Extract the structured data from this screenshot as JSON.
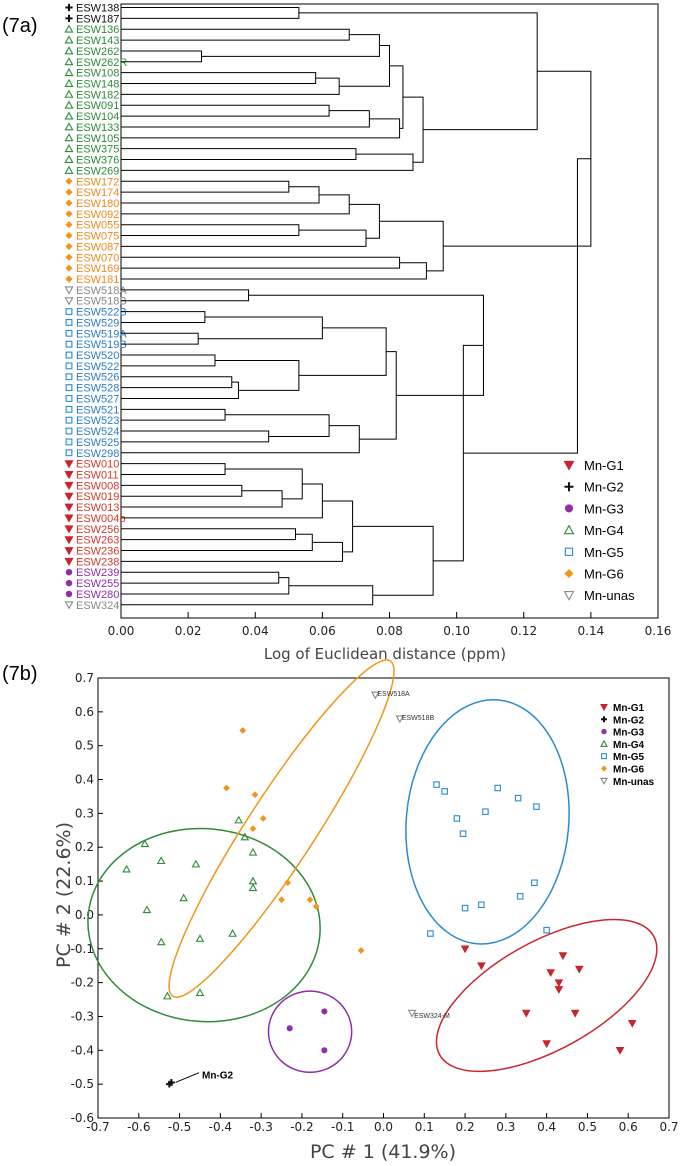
{
  "groups": {
    "Mn-G1": {
      "color": "#c9252c",
      "marker": "tri-down"
    },
    "Mn-G2": {
      "color": "#111111",
      "marker": "plus"
    },
    "Mn-G3": {
      "color": "#8e2ea8",
      "marker": "circle"
    },
    "Mn-G4": {
      "color": "#2e8b3a",
      "marker": "tri-up-open"
    },
    "Mn-G5": {
      "color": "#2a8bd0",
      "marker": "square-open"
    },
    "Mn-G6": {
      "color": "#f0961c",
      "marker": "diamond"
    },
    "Mn-unas": {
      "color": "#8a8a8a",
      "marker": "tri-down-open"
    }
  },
  "label_colors": {
    "Mn-G1": "#d33a2c",
    "Mn-G2": "#111111",
    "Mn-G3": "#8e2ea8",
    "Mn-G4": "#2e8b3a",
    "Mn-G5": "#2a7ec4",
    "Mn-G6": "#ee8a1c",
    "Mn-unas": "#888888"
  },
  "chart_data": [
    {
      "panel_label": "(7a)",
      "type": "dendrogram",
      "xlabel": "Log of Euclidean distance (ppm)",
      "xlim": [
        0.0,
        0.16
      ],
      "xticks": [
        "0.00",
        "0.02",
        "0.04",
        "0.06",
        "0.08",
        "0.10",
        "0.12",
        "0.14",
        "0.16"
      ],
      "legend_position": "bottom-right",
      "legend": [
        "Mn-G1",
        "Mn-G2",
        "Mn-G3",
        "Mn-G4",
        "Mn-G5",
        "Mn-G6",
        "Mn-unas"
      ],
      "leaves": [
        {
          "name": "ESW138",
          "group": "Mn-G2"
        },
        {
          "name": "ESW187",
          "group": "Mn-G2"
        },
        {
          "name": "ESW136",
          "group": "Mn-G4"
        },
        {
          "name": "ESW143",
          "group": "Mn-G4"
        },
        {
          "name": "ESW262",
          "group": "Mn-G4"
        },
        {
          "name": "ESW262R",
          "group": "Mn-G4"
        },
        {
          "name": "ESW108",
          "group": "Mn-G4"
        },
        {
          "name": "ESW148",
          "group": "Mn-G4"
        },
        {
          "name": "ESW182",
          "group": "Mn-G4"
        },
        {
          "name": "ESW091",
          "group": "Mn-G4"
        },
        {
          "name": "ESW104",
          "group": "Mn-G4"
        },
        {
          "name": "ESW133",
          "group": "Mn-G4"
        },
        {
          "name": "ESW105",
          "group": "Mn-G4"
        },
        {
          "name": "ESW375",
          "group": "Mn-G4"
        },
        {
          "name": "ESW376",
          "group": "Mn-G4"
        },
        {
          "name": "ESW269",
          "group": "Mn-G4"
        },
        {
          "name": "ESW172",
          "group": "Mn-G6"
        },
        {
          "name": "ESW174",
          "group": "Mn-G6"
        },
        {
          "name": "ESW180",
          "group": "Mn-G6"
        },
        {
          "name": "ESW092",
          "group": "Mn-G6"
        },
        {
          "name": "ESW055",
          "group": "Mn-G6"
        },
        {
          "name": "ESW075",
          "group": "Mn-G6"
        },
        {
          "name": "ESW087",
          "group": "Mn-G6"
        },
        {
          "name": "ESW070",
          "group": "Mn-G6"
        },
        {
          "name": "ESW169",
          "group": "Mn-G6"
        },
        {
          "name": "ESW181",
          "group": "Mn-G6"
        },
        {
          "name": "ESW518A",
          "group": "Mn-unas"
        },
        {
          "name": "ESW518B",
          "group": "Mn-unas"
        },
        {
          "name": "ESW522B",
          "group": "Mn-G5"
        },
        {
          "name": "ESW529",
          "group": "Mn-G5"
        },
        {
          "name": "ESW519A",
          "group": "Mn-G5"
        },
        {
          "name": "ESW519B",
          "group": "Mn-G5"
        },
        {
          "name": "ESW520",
          "group": "Mn-G5"
        },
        {
          "name": "ESW522",
          "group": "Mn-G5"
        },
        {
          "name": "ESW526",
          "group": "Mn-G5"
        },
        {
          "name": "ESW528",
          "group": "Mn-G5"
        },
        {
          "name": "ESW527",
          "group": "Mn-G5"
        },
        {
          "name": "ESW521",
          "group": "Mn-G5"
        },
        {
          "name": "ESW523",
          "group": "Mn-G5"
        },
        {
          "name": "ESW524",
          "group": "Mn-G5"
        },
        {
          "name": "ESW525",
          "group": "Mn-G5"
        },
        {
          "name": "ESW298",
          "group": "Mn-G5"
        },
        {
          "name": "ESW010",
          "group": "Mn-G1"
        },
        {
          "name": "ESW011",
          "group": "Mn-G1"
        },
        {
          "name": "ESW008",
          "group": "Mn-G1"
        },
        {
          "name": "ESW019",
          "group": "Mn-G1"
        },
        {
          "name": "ESW013",
          "group": "Mn-G1"
        },
        {
          "name": "ESW004b",
          "group": "Mn-G1"
        },
        {
          "name": "ESW256",
          "group": "Mn-G1"
        },
        {
          "name": "ESW263",
          "group": "Mn-G1"
        },
        {
          "name": "ESW236",
          "group": "Mn-G1"
        },
        {
          "name": "ESW238",
          "group": "Mn-G1"
        },
        {
          "name": "ESW239",
          "group": "Mn-G3"
        },
        {
          "name": "ESW255",
          "group": "Mn-G3"
        },
        {
          "name": "ESW280",
          "group": "Mn-G3"
        },
        {
          "name": "ESW324",
          "group": "Mn-unas"
        }
      ],
      "merges": [
        {
          "id": "a",
          "l": "ESW138",
          "r": "ESW187",
          "h": 0.053
        },
        {
          "id": "b",
          "l": "ESW136",
          "r": "ESW143",
          "h": 0.068
        },
        {
          "id": "c",
          "l": "ESW262",
          "r": "ESW262R",
          "h": 0.024
        },
        {
          "id": "d",
          "l": "b",
          "r": "c",
          "h": 0.077
        },
        {
          "id": "e",
          "l": "ESW108",
          "r": "ESW148",
          "h": 0.058
        },
        {
          "id": "f",
          "l": "e",
          "r": "ESW182",
          "h": 0.065
        },
        {
          "id": "g",
          "l": "d",
          "r": "f",
          "h": 0.08
        },
        {
          "id": "h",
          "l": "ESW091",
          "r": "ESW104",
          "h": 0.062
        },
        {
          "id": "i",
          "l": "h",
          "r": "ESW133",
          "h": 0.074
        },
        {
          "id": "j",
          "l": "i",
          "r": "ESW105",
          "h": 0.083
        },
        {
          "id": "k",
          "l": "g",
          "r": "j",
          "h": 0.084
        },
        {
          "id": "l",
          "l": "ESW375",
          "r": "ESW376",
          "h": 0.07
        },
        {
          "id": "m",
          "l": "l",
          "r": "ESW269",
          "h": 0.087
        },
        {
          "id": "n",
          "l": "k",
          "r": "m",
          "h": 0.09
        },
        {
          "id": "o",
          "l": "a",
          "r": "n",
          "h": 0.124
        },
        {
          "id": "p",
          "l": "ESW172",
          "r": "ESW174",
          "h": 0.05
        },
        {
          "id": "q",
          "l": "p",
          "r": "ESW180",
          "h": 0.059
        },
        {
          "id": "r",
          "l": "q",
          "r": "ESW092",
          "h": 0.068
        },
        {
          "id": "s",
          "l": "ESW055",
          "r": "ESW075",
          "h": 0.053
        },
        {
          "id": "t",
          "l": "s",
          "r": "ESW087",
          "h": 0.073
        },
        {
          "id": "u",
          "l": "r",
          "r": "t",
          "h": 0.077
        },
        {
          "id": "v",
          "l": "ESW070",
          "r": "ESW169",
          "h": 0.083
        },
        {
          "id": "w",
          "l": "v",
          "r": "ESW181",
          "h": 0.091
        },
        {
          "id": "x",
          "l": "u",
          "r": "w",
          "h": 0.096
        },
        {
          "id": "y",
          "l": "o",
          "r": "x",
          "h": 0.14
        },
        {
          "id": "z",
          "l": "ESW522B",
          "r": "ESW529",
          "h": 0.025
        },
        {
          "id": "aa",
          "l": "ESW519A",
          "r": "ESW519B",
          "h": 0.023
        },
        {
          "id": "ab",
          "l": "z",
          "r": "aa",
          "h": 0.06
        },
        {
          "id": "ac",
          "l": "ESW520",
          "r": "ESW522",
          "h": 0.028
        },
        {
          "id": "ad",
          "l": "ESW526",
          "r": "ESW528",
          "h": 0.033
        },
        {
          "id": "ae",
          "l": "ad",
          "r": "ESW527",
          "h": 0.035
        },
        {
          "id": "af",
          "l": "ac",
          "r": "ae",
          "h": 0.053
        },
        {
          "id": "ag",
          "l": "ab",
          "r": "af",
          "h": 0.079
        },
        {
          "id": "ah",
          "l": "ESW521",
          "r": "ESW523",
          "h": 0.031
        },
        {
          "id": "ai",
          "l": "ESW524",
          "r": "ESW525",
          "h": 0.044
        },
        {
          "id": "aj",
          "l": "ah",
          "r": "ai",
          "h": 0.062
        },
        {
          "id": "ak",
          "l": "aj",
          "r": "ESW298",
          "h": 0.071
        },
        {
          "id": "al",
          "l": "ag",
          "r": "ak",
          "h": 0.082
        },
        {
          "id": "am",
          "l": "ESW518A",
          "r": "ESW518B",
          "h": 0.038
        },
        {
          "id": "an",
          "l": "am",
          "r": "al",
          "h": 0.108
        },
        {
          "id": "ao",
          "l": "ESW010",
          "r": "ESW011",
          "h": 0.031
        },
        {
          "id": "ap",
          "l": "ESW008",
          "r": "ESW019",
          "h": 0.036
        },
        {
          "id": "aq",
          "l": "ap",
          "r": "ESW013",
          "h": 0.048
        },
        {
          "id": "ar",
          "l": "ao",
          "r": "aq",
          "h": 0.054
        },
        {
          "id": "as",
          "l": "ar",
          "r": "ESW004b",
          "h": 0.06
        },
        {
          "id": "at",
          "l": "ESW256",
          "r": "ESW263",
          "h": 0.052
        },
        {
          "id": "au",
          "l": "at",
          "r": "ESW236",
          "h": 0.057
        },
        {
          "id": "av",
          "l": "au",
          "r": "ESW238",
          "h": 0.066
        },
        {
          "id": "aw",
          "l": "as",
          "r": "av",
          "h": 0.069
        },
        {
          "id": "ax",
          "l": "ESW239",
          "r": "ESW255",
          "h": 0.047
        },
        {
          "id": "ay",
          "l": "ax",
          "r": "ESW280",
          "h": 0.05
        },
        {
          "id": "az",
          "l": "ay",
          "r": "ESW324",
          "h": 0.075
        },
        {
          "id": "ba",
          "l": "aw",
          "r": "az",
          "h": 0.093
        },
        {
          "id": "bb",
          "l": "an",
          "r": "ba",
          "h": 0.102
        },
        {
          "id": "bc",
          "l": "bb",
          "r": "y",
          "h": 0.136
        }
      ]
    },
    {
      "panel_label": "(7b)",
      "type": "scatter",
      "xlabel": "PC # 1 (41.9%)",
      "ylabel": "PC # 2 (22.6%)",
      "xlim": [
        -0.7,
        0.7
      ],
      "ylim": [
        -0.6,
        0.7
      ],
      "xticks": [
        "-0.7",
        "-0.6",
        "-0.5",
        "-0.4",
        "-0.3",
        "-0.2",
        "-0.1",
        "0.0",
        "0.1",
        "0.2",
        "0.3",
        "0.4",
        "0.5",
        "0.6",
        "0.7"
      ],
      "yticks": [
        "-0.6",
        "-0.5",
        "-0.4",
        "-0.3",
        "-0.2",
        "-0.1",
        "0.0",
        "0.1",
        "0.2",
        "0.3",
        "0.4",
        "0.5",
        "0.6",
        "0.7"
      ],
      "legend_position": "top-right",
      "legend": [
        "Mn-G1",
        "Mn-G2",
        "Mn-G3",
        "Mn-G4",
        "Mn-G5",
        "Mn-G6",
        "Mn-unas"
      ],
      "annotations": [
        {
          "text": "ESW518A",
          "x": -0.015,
          "y": 0.655
        },
        {
          "text": "ESW518B",
          "x": 0.045,
          "y": 0.585
        },
        {
          "text": "ESW324-M",
          "x": 0.075,
          "y": -0.295
        },
        {
          "text": "Mn-G2",
          "x": -0.445,
          "y": -0.475
        }
      ],
      "series": [
        {
          "name": "Mn-G1",
          "points": [
            [
              0.2,
              -0.1
            ],
            [
              0.24,
              -0.15
            ],
            [
              0.44,
              -0.12
            ],
            [
              0.41,
              -0.17
            ],
            [
              0.48,
              -0.16
            ],
            [
              0.43,
              -0.2
            ],
            [
              0.43,
              -0.22
            ],
            [
              0.35,
              -0.29
            ],
            [
              0.47,
              -0.29
            ],
            [
              0.61,
              -0.32
            ],
            [
              0.4,
              -0.38
            ],
            [
              0.58,
              -0.4
            ]
          ]
        },
        {
          "name": "Mn-G2",
          "points": [
            [
              -0.52,
              -0.495
            ],
            [
              -0.525,
              -0.5
            ]
          ]
        },
        {
          "name": "Mn-G3",
          "points": [
            [
              -0.23,
              -0.335
            ],
            [
              -0.145,
              -0.285
            ],
            [
              -0.145,
              -0.4
            ]
          ]
        },
        {
          "name": "Mn-G4",
          "points": [
            [
              -0.585,
              0.21
            ],
            [
              -0.63,
              0.135
            ],
            [
              -0.545,
              0.16
            ],
            [
              -0.46,
              0.15
            ],
            [
              -0.355,
              0.28
            ],
            [
              -0.34,
              0.23
            ],
            [
              -0.32,
              0.185
            ],
            [
              -0.32,
              0.1
            ],
            [
              -0.32,
              0.08
            ],
            [
              -0.49,
              0.05
            ],
            [
              -0.58,
              0.015
            ],
            [
              -0.37,
              -0.055
            ],
            [
              -0.45,
              -0.07
            ],
            [
              -0.545,
              -0.08
            ],
            [
              -0.53,
              -0.24
            ],
            [
              -0.45,
              -0.23
            ]
          ]
        },
        {
          "name": "Mn-G5",
          "points": [
            [
              0.13,
              0.385
            ],
            [
              0.15,
              0.365
            ],
            [
              0.28,
              0.375
            ],
            [
              0.33,
              0.345
            ],
            [
              0.18,
              0.285
            ],
            [
              0.25,
              0.305
            ],
            [
              0.375,
              0.32
            ],
            [
              0.195,
              0.24
            ],
            [
              0.37,
              0.095
            ],
            [
              0.335,
              0.055
            ],
            [
              0.24,
              0.03
            ],
            [
              0.2,
              0.02
            ],
            [
              0.115,
              -0.055
            ],
            [
              0.4,
              -0.045
            ]
          ]
        },
        {
          "name": "Mn-G6",
          "points": [
            [
              -0.345,
              0.545
            ],
            [
              -0.385,
              0.375
            ],
            [
              -0.315,
              0.355
            ],
            [
              -0.32,
              0.255
            ],
            [
              -0.295,
              0.285
            ],
            [
              -0.235,
              0.095
            ],
            [
              -0.25,
              0.045
            ],
            [
              -0.18,
              0.045
            ],
            [
              -0.165,
              0.025
            ],
            [
              -0.055,
              -0.105
            ]
          ]
        },
        {
          "name": "Mn-unas",
          "points": [
            [
              -0.02,
              0.65
            ],
            [
              0.04,
              0.58
            ],
            [
              0.07,
              -0.29
            ]
          ]
        }
      ],
      "ellipses": [
        {
          "group": "Mn-G4",
          "cx": -0.44,
          "cy": -0.03,
          "rx": 0.285,
          "ry": 0.285,
          "rot": 5
        },
        {
          "group": "Mn-G6",
          "cx": -0.25,
          "cy": 0.255,
          "rx": 0.49,
          "ry": 0.1,
          "rot": -57
        },
        {
          "group": "Mn-G5",
          "cx": 0.255,
          "cy": 0.275,
          "rx": 0.3,
          "ry": 0.24,
          "rot": 95
        },
        {
          "group": "Mn-G1",
          "cx": 0.4,
          "cy": -0.238,
          "rx": 0.3,
          "ry": 0.16,
          "rot": -29
        },
        {
          "group": "Mn-G3",
          "cx": -0.18,
          "cy": -0.345,
          "rx": 0.102,
          "ry": 0.12,
          "rot": 0
        }
      ]
    }
  ]
}
